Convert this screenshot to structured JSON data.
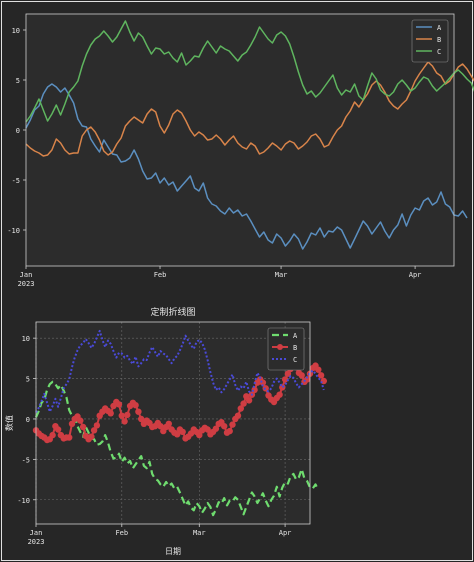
{
  "colors": {
    "figure_bg": "#262626",
    "axes_bg": "#2c2c2c",
    "spine": "#cfcfcf",
    "tick_text": "#e6e6e6",
    "grid": "#6a6a6a"
  },
  "chart_data": [
    {
      "type": "line",
      "title": "",
      "xlabel": "",
      "ylabel": "",
      "x_axis": {
        "kind": "date",
        "start": "2023-01-01",
        "end": "2023-04-10",
        "ticks": [
          {
            "date": "2023-01-01",
            "label": "Jan",
            "sublabel": "2023"
          },
          {
            "date": "2023-02-01",
            "label": "Feb",
            "sublabel": ""
          },
          {
            "date": "2023-03-01",
            "label": "Mar",
            "sublabel": ""
          },
          {
            "date": "2023-04-01",
            "label": "Apr",
            "sublabel": ""
          }
        ]
      },
      "ylim": [
        -13.6,
        11.6
      ],
      "yticks": [
        10,
        5,
        0,
        -5,
        -10
      ],
      "grid": false,
      "legend": "top-right",
      "series": [
        {
          "name": "A",
          "color": "#5b8fc0",
          "dash": "",
          "values": [
            0.2,
            1.0,
            2.0,
            2.4,
            3.6,
            4.3,
            4.6,
            4.3,
            3.8,
            4.2,
            3.5,
            2.7,
            1.1,
            0.4,
            0.3,
            -0.9,
            -1.6,
            -2.2,
            -1.0,
            -1.7,
            -2.4,
            -2.5,
            -3.2,
            -3.1,
            -2.8,
            -2.0,
            -2.9,
            -4.1,
            -4.9,
            -4.8,
            -4.3,
            -5.3,
            -4.8,
            -5.5,
            -5.2,
            -6.1,
            -5.6,
            -5.1,
            -4.6,
            -5.8,
            -6.1,
            -5.3,
            -6.8,
            -7.4,
            -7.6,
            -8.1,
            -8.4,
            -7.8,
            -8.3,
            -8.0,
            -8.6,
            -8.4,
            -9.1,
            -9.9,
            -10.7,
            -10.2,
            -11.0,
            -11.3,
            -10.4,
            -10.8,
            -11.6,
            -11.1,
            -10.4,
            -10.9,
            -11.9,
            -11.2,
            -10.3,
            -10.5,
            -9.8,
            -10.7,
            -10.1,
            -10.2,
            -9.7,
            -10.0,
            -10.9,
            -11.8,
            -10.9,
            -10.0,
            -9.1,
            -9.6,
            -10.4,
            -9.8,
            -9.2,
            -10.1,
            -10.8,
            -10.0,
            -9.5,
            -8.4,
            -9.6,
            -8.5,
            -7.8,
            -8.0,
            -7.1,
            -6.8,
            -7.5,
            -7.2,
            -6.2,
            -7.4,
            -7.7,
            -8.5,
            -8.6,
            -8.1,
            -8.8
          ]
        },
        {
          "name": "B",
          "color": "#d8844a",
          "dash": "",
          "values": [
            -1.4,
            -1.8,
            -2.1,
            -2.3,
            -2.6,
            -2.5,
            -2.0,
            -0.9,
            -1.3,
            -2.0,
            -2.4,
            -2.3,
            -2.3,
            -0.6,
            0.0,
            0.3,
            -0.2,
            -1.0,
            -2.1,
            -2.5,
            -2.2,
            -1.4,
            -0.8,
            0.4,
            0.9,
            1.3,
            1.0,
            0.7,
            1.6,
            2.1,
            1.8,
            0.4,
            -0.3,
            0.5,
            1.6,
            2.0,
            1.7,
            0.9,
            0.0,
            -0.6,
            -0.2,
            -0.5,
            -1.0,
            -0.9,
            -0.5,
            -0.9,
            -1.5,
            -1.0,
            -0.6,
            -1.3,
            -1.7,
            -1.9,
            -1.3,
            -1.6,
            -2.4,
            -2.2,
            -1.8,
            -1.3,
            -1.6,
            -2.0,
            -1.4,
            -1.1,
            -1.3,
            -1.9,
            -1.6,
            -1.2,
            -0.6,
            -0.4,
            -0.9,
            -1.7,
            -1.5,
            -0.7,
            0.0,
            0.4,
            1.3,
            1.9,
            2.8,
            2.3,
            3.0,
            3.6,
            4.5,
            4.9,
            4.5,
            3.8,
            2.9,
            2.4,
            2.1,
            2.6,
            3.0,
            3.9,
            4.9,
            5.6,
            6.2,
            6.8,
            6.4,
            5.7,
            5.4,
            4.6,
            4.9,
            5.6,
            6.3,
            6.6,
            6.1,
            5.4,
            4.7
          ]
        },
        {
          "name": "C",
          "color": "#5fb55f",
          "dash": "",
          "values": [
            0.8,
            1.4,
            2.2,
            3.1,
            2.0,
            0.9,
            1.6,
            2.5,
            1.5,
            2.6,
            3.8,
            4.3,
            4.9,
            6.4,
            7.6,
            8.5,
            9.1,
            9.4,
            9.9,
            9.4,
            8.8,
            9.3,
            10.1,
            10.9,
            9.8,
            8.9,
            9.7,
            9.3,
            8.4,
            7.6,
            8.2,
            8.1,
            7.6,
            7.8,
            7.2,
            6.8,
            7.7,
            6.5,
            6.9,
            7.4,
            7.3,
            8.2,
            8.9,
            8.3,
            7.7,
            8.4,
            8.1,
            7.9,
            7.4,
            6.9,
            7.5,
            7.8,
            8.5,
            9.3,
            10.3,
            9.7,
            9.1,
            8.7,
            9.5,
            9.8,
            9.4,
            8.6,
            7.3,
            5.8,
            4.5,
            3.6,
            3.9,
            3.3,
            3.7,
            4.3,
            4.9,
            5.5,
            4.2,
            3.5,
            4.0,
            3.8,
            4.6,
            3.4,
            3.0,
            4.4,
            5.7,
            5.1,
            4.0,
            3.6,
            3.4,
            3.8,
            4.6,
            5.0,
            4.5,
            3.9,
            4.2,
            4.8,
            5.3,
            5.1,
            4.4,
            3.9,
            4.3,
            4.7,
            5.2,
            5.7,
            6.0,
            5.6,
            5.1,
            4.7,
            3.6
          ]
        }
      ]
    },
    {
      "type": "line",
      "title": "定制折线图",
      "xlabel": "日期",
      "ylabel": "数值",
      "x_axis": {
        "kind": "date",
        "start": "2023-01-01",
        "end": "2023-04-10",
        "ticks": [
          {
            "date": "2023-01-01",
            "label": "Jan",
            "sublabel": "2023"
          },
          {
            "date": "2023-02-01",
            "label": "Feb",
            "sublabel": ""
          },
          {
            "date": "2023-03-01",
            "label": "Mar",
            "sublabel": ""
          },
          {
            "date": "2023-04-01",
            "label": "Apr",
            "sublabel": ""
          }
        ]
      },
      "ylim": [
        -13.0,
        12.0
      ],
      "yticks": [
        10,
        5,
        0,
        -5,
        -10
      ],
      "grid": true,
      "legend": "top-right",
      "series": [
        {
          "name": "A",
          "color": "#6fdc6f",
          "dash": "7 4",
          "markers": false,
          "width": 2.2
        },
        {
          "name": "B",
          "color": "#cf3d43",
          "dash": "",
          "markers": true,
          "width": 2.0
        },
        {
          "name": "C",
          "color": "#4a4ad8",
          "dash": "2 2",
          "markers": false,
          "width": 2.0
        }
      ]
    }
  ]
}
